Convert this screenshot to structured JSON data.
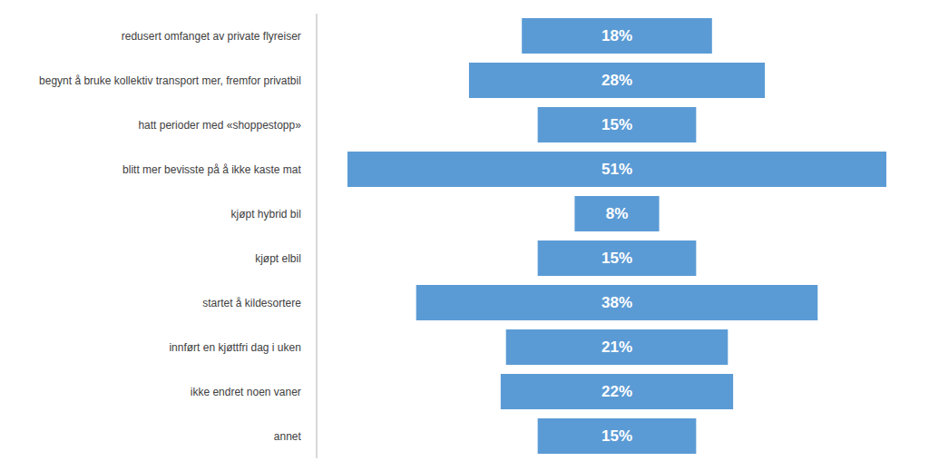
{
  "chart_data": {
    "type": "funnel",
    "orientation": "horizontal",
    "categories": [
      "redusert omfanget av private flyreiser",
      "begynt å bruke kollektiv transport mer, fremfor privatbil",
      "hatt perioder med «shoppestopp»",
      "blitt mer bevisste på å ikke kaste mat",
      "kjøpt hybrid bil",
      "kjøpt elbil",
      "startet å kildesortere",
      "innført en kjøttfri dag i uken",
      "ikke endret noen vaner",
      "annet"
    ],
    "values": [
      18,
      28,
      15,
      51,
      8,
      15,
      38,
      21,
      22,
      15
    ],
    "value_labels": [
      "18%",
      "28%",
      "15%",
      "51%",
      "8%",
      "15%",
      "38%",
      "21%",
      "22%",
      "15%"
    ],
    "color": "#5b9bd5",
    "data_labels": true,
    "tick_labels": "y",
    "grid": false
  }
}
